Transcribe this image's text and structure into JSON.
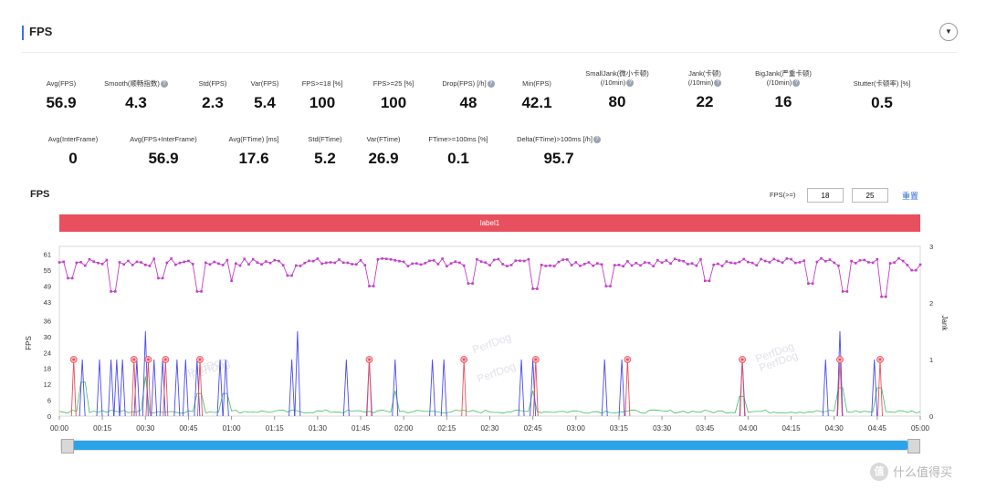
{
  "section": {
    "title": "FPS",
    "collapse_icon": "chevron-down-icon"
  },
  "metrics_row1": [
    {
      "label": "Avg(FPS)",
      "value": "56.9",
      "help": false
    },
    {
      "label": "Smooth(顺畅指数)",
      "value": "4.3",
      "help": true
    },
    {
      "label": "Std(FPS)",
      "value": "2.3",
      "help": false
    },
    {
      "label": "Var(FPS)",
      "value": "5.4",
      "help": false
    },
    {
      "label": "FPS>=18 [%]",
      "value": "100",
      "help": false
    },
    {
      "label": "FPS>=25 [%]",
      "value": "100",
      "help": false
    },
    {
      "label": "Drop(FPS) [/h]",
      "value": "48",
      "help": true
    },
    {
      "label": "Min(FPS)",
      "value": "42.1",
      "help": false
    },
    {
      "label": "SmallJank(微小卡顿)",
      "label2": "(/10min)",
      "value": "80",
      "help": true
    },
    {
      "label": "Jank(卡顿)",
      "label2": "(/10min)",
      "value": "22",
      "help": true
    },
    {
      "label": "BigJank(严重卡顿)",
      "label2": "(/10min)",
      "value": "16",
      "help": true
    },
    {
      "label": "Stutter(卡顿率) [%]",
      "value": "0.5",
      "help": false
    }
  ],
  "metrics_row2": [
    {
      "label": "Avg(InterFrame)",
      "value": "0",
      "help": false
    },
    {
      "label": "Avg(FPS+InterFrame)",
      "value": "56.9",
      "help": false
    },
    {
      "label": "Avg(FTime) [ms]",
      "value": "17.6",
      "help": false
    },
    {
      "label": "Std(FTime)",
      "value": "5.2",
      "help": false
    },
    {
      "label": "Var(FTime)",
      "value": "26.9",
      "help": false
    },
    {
      "label": "FTime>=100ms [%]",
      "value": "0.1",
      "help": false
    },
    {
      "label": "Delta(FTime)>100ms [/h]",
      "value": "95.7",
      "help": true
    }
  ],
  "chart_header": {
    "title": "FPS",
    "filter_label": "FPS(>=)",
    "filter_value_1": "18",
    "filter_value_2": "25",
    "reset_label": "重置"
  },
  "label_bar": {
    "text": "label1",
    "color": "#e8505d"
  },
  "watermark": {
    "text": "PerfDog"
  },
  "site_watermark": {
    "logo": "值",
    "text": "什么值得买"
  },
  "colors": {
    "fps": "#c040c8",
    "jank": "#4a4af0",
    "bigjank": "#e8505d",
    "ftime": "#3fbf5a",
    "accent": "#3b6ef5"
  },
  "chart_data": {
    "type": "line",
    "x_ticks": [
      "00:00",
      "00:15",
      "00:30",
      "00:45",
      "01:00",
      "01:15",
      "01:30",
      "01:45",
      "02:00",
      "02:15",
      "02:30",
      "02:45",
      "03:00",
      "03:15",
      "03:30",
      "03:45",
      "04:00",
      "04:15",
      "04:30",
      "04:45",
      "05:00"
    ],
    "x_range_seconds": [
      0,
      300
    ],
    "y_left": {
      "label": "FPS",
      "ticks": [
        0,
        6,
        12,
        18,
        24,
        30,
        36,
        43,
        49,
        55,
        61
      ],
      "range": [
        0,
        64
      ]
    },
    "y_right": {
      "label": "Jank",
      "ticks": [
        0,
        1,
        2,
        3
      ],
      "range": [
        0,
        3
      ]
    },
    "fps_baseline": 58,
    "fps_dips": [
      {
        "t": 4,
        "v": 52
      },
      {
        "t": 19,
        "v": 47
      },
      {
        "t": 35,
        "v": 52
      },
      {
        "t": 49,
        "v": 47
      },
      {
        "t": 60,
        "v": 51
      },
      {
        "t": 80,
        "v": 53
      },
      {
        "t": 109,
        "v": 49
      },
      {
        "t": 143,
        "v": 50
      },
      {
        "t": 166,
        "v": 48
      },
      {
        "t": 191,
        "v": 49
      },
      {
        "t": 226,
        "v": 51
      },
      {
        "t": 262,
        "v": 50
      },
      {
        "t": 274,
        "v": 47
      },
      {
        "t": 287,
        "v": 45
      },
      {
        "t": 298,
        "v": 55
      }
    ],
    "jank_spikes": [
      {
        "t": 8,
        "v": 1
      },
      {
        "t": 14,
        "v": 1
      },
      {
        "t": 18,
        "v": 1
      },
      {
        "t": 20,
        "v": 1
      },
      {
        "t": 22,
        "v": 1
      },
      {
        "t": 27,
        "v": 1
      },
      {
        "t": 30,
        "v": 1.5
      },
      {
        "t": 33,
        "v": 1
      },
      {
        "t": 36,
        "v": 1
      },
      {
        "t": 41,
        "v": 1
      },
      {
        "t": 44,
        "v": 1
      },
      {
        "t": 48,
        "v": 1
      },
      {
        "t": 56,
        "v": 1
      },
      {
        "t": 58,
        "v": 1
      },
      {
        "t": 81,
        "v": 1
      },
      {
        "t": 83,
        "v": 1.5
      },
      {
        "t": 100,
        "v": 1
      },
      {
        "t": 108,
        "v": 1
      },
      {
        "t": 117,
        "v": 1
      },
      {
        "t": 130,
        "v": 1
      },
      {
        "t": 134,
        "v": 1
      },
      {
        "t": 161,
        "v": 1
      },
      {
        "t": 165,
        "v": 1
      },
      {
        "t": 190,
        "v": 1
      },
      {
        "t": 196,
        "v": 1
      },
      {
        "t": 238,
        "v": 1
      },
      {
        "t": 267,
        "v": 1
      },
      {
        "t": 272,
        "v": 1.5
      },
      {
        "t": 284,
        "v": 1
      }
    ],
    "bigjank_markers": [
      {
        "t": 5,
        "v": 1
      },
      {
        "t": 26,
        "v": 1
      },
      {
        "t": 31,
        "v": 1
      },
      {
        "t": 37,
        "v": 1
      },
      {
        "t": 49,
        "v": 1
      },
      {
        "t": 108,
        "v": 1
      },
      {
        "t": 141,
        "v": 1
      },
      {
        "t": 166,
        "v": 1
      },
      {
        "t": 198,
        "v": 1
      },
      {
        "t": 238,
        "v": 1
      },
      {
        "t": 272,
        "v": 1
      },
      {
        "t": 286,
        "v": 1
      }
    ],
    "ftime_baseline": 0.05,
    "ftime_spikes": [
      {
        "t": 8,
        "v": 0.6
      },
      {
        "t": 30,
        "v": 0.7
      },
      {
        "t": 49,
        "v": 0.4
      },
      {
        "t": 58,
        "v": 0.4
      },
      {
        "t": 117,
        "v": 0.45
      },
      {
        "t": 165,
        "v": 0.45
      },
      {
        "t": 238,
        "v": 0.35
      },
      {
        "t": 272,
        "v": 0.5
      },
      {
        "t": 286,
        "v": 0.5
      }
    ]
  }
}
